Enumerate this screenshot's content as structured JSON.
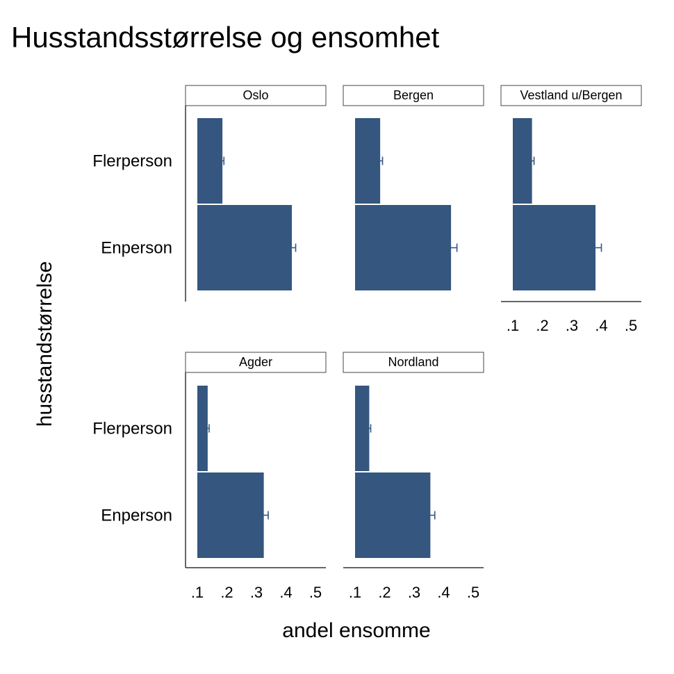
{
  "chart_data": {
    "type": "bar",
    "orientation": "horizontal",
    "title": "Husstandsstørrelse og ensomhet",
    "xlabel": "andel ensomme",
    "ylabel": "husstandstørrelse",
    "categories": [
      "Flerperson",
      "Enperson"
    ],
    "xlim": [
      0.1,
      0.5
    ],
    "xticks": [
      0.1,
      0.2,
      0.3,
      0.4,
      0.5
    ],
    "xtick_labels": [
      ".1",
      ".2",
      ".3",
      ".4",
      ".5"
    ],
    "bar_color": "#34567f",
    "error_bar_color": "#34567f",
    "panels": [
      {
        "name": "Oslo",
        "values": [
          0.185,
          0.42
        ],
        "ci": [
          [
            0.18,
            0.19
          ],
          [
            0.415,
            0.433
          ]
        ]
      },
      {
        "name": "Bergen",
        "values": [
          0.185,
          0.425
        ],
        "ci": [
          [
            0.178,
            0.193
          ],
          [
            0.41,
            0.445
          ]
        ]
      },
      {
        "name": "Vestland u/Bergen",
        "values": [
          0.165,
          0.38
        ],
        "ci": [
          [
            0.16,
            0.172
          ],
          [
            0.367,
            0.4
          ]
        ]
      },
      {
        "name": "Agder",
        "values": [
          0.135,
          0.325
        ],
        "ci": [
          [
            0.13,
            0.14
          ],
          [
            0.313,
            0.34
          ]
        ]
      },
      {
        "name": "Nordland",
        "values": [
          0.148,
          0.355
        ],
        "ci": [
          [
            0.143,
            0.153
          ],
          [
            0.34,
            0.37
          ]
        ]
      }
    ]
  }
}
